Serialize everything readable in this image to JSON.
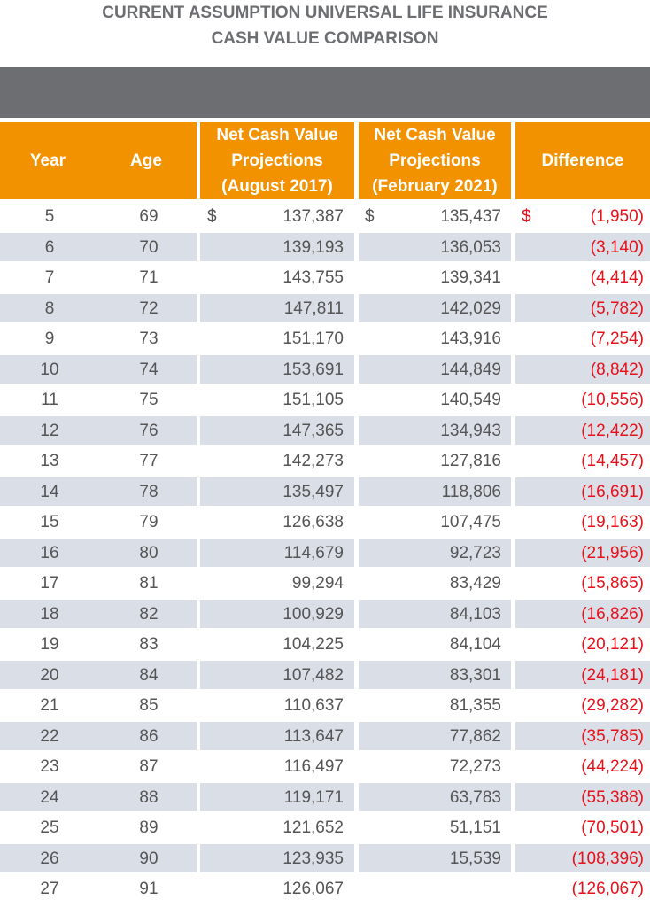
{
  "title": [
    "CURRENT ASSUMPTION UNIVERSAL LIFE INSURANCE",
    "CASH VALUE COMPARISON"
  ],
  "table": {
    "headers": [
      [
        "Year"
      ],
      [
        "Age"
      ],
      [
        "Net Cash Value",
        "Projections",
        "(August 2017)"
      ],
      [
        "Net Cash Value",
        "Projections",
        "(February 2021)"
      ],
      [
        "Difference"
      ]
    ],
    "currency": "$",
    "rows": [
      [
        "5",
        "69",
        "137,387",
        "135,437",
        "(1,950)"
      ],
      [
        "6",
        "70",
        "139,193",
        "136,053",
        "(3,140)"
      ],
      [
        "7",
        "71",
        "143,755",
        "139,341",
        "(4,414)"
      ],
      [
        "8",
        "72",
        "147,811",
        "142,029",
        "(5,782)"
      ],
      [
        "9",
        "73",
        "151,170",
        "143,916",
        "(7,254)"
      ],
      [
        "10",
        "74",
        "153,691",
        "144,849",
        "(8,842)"
      ],
      [
        "11",
        "75",
        "151,105",
        "140,549",
        "(10,556)"
      ],
      [
        "12",
        "76",
        "147,365",
        "134,943",
        "(12,422)"
      ],
      [
        "13",
        "77",
        "142,273",
        "127,816",
        "(14,457)"
      ],
      [
        "14",
        "78",
        "135,497",
        "118,806",
        "(16,691)"
      ],
      [
        "15",
        "79",
        "126,638",
        "107,475",
        "(19,163)"
      ],
      [
        "16",
        "80",
        "114,679",
        "92,723",
        "(21,956)"
      ],
      [
        "17",
        "81",
        "99,294",
        "83,429",
        "(15,865)"
      ],
      [
        "18",
        "82",
        "100,929",
        "84,103",
        "(16,826)"
      ],
      [
        "19",
        "83",
        "104,225",
        "84,104",
        "(20,121)"
      ],
      [
        "20",
        "84",
        "107,482",
        "83,301",
        "(24,181)"
      ],
      [
        "21",
        "85",
        "110,637",
        "81,355",
        "(29,282)"
      ],
      [
        "22",
        "86",
        "113,647",
        "77,862",
        "(35,785)"
      ],
      [
        "23",
        "87",
        "116,497",
        "72,273",
        "(44,224)"
      ],
      [
        "24",
        "88",
        "119,171",
        "63,783",
        "(55,388)"
      ],
      [
        "25",
        "89",
        "121,652",
        "51,151",
        "(70,501)"
      ],
      [
        "26",
        "90",
        "123,935",
        "15,539",
        "(108,396)"
      ],
      [
        "27",
        "91",
        "126,067",
        null,
        "(126,067)"
      ]
    ]
  }
}
